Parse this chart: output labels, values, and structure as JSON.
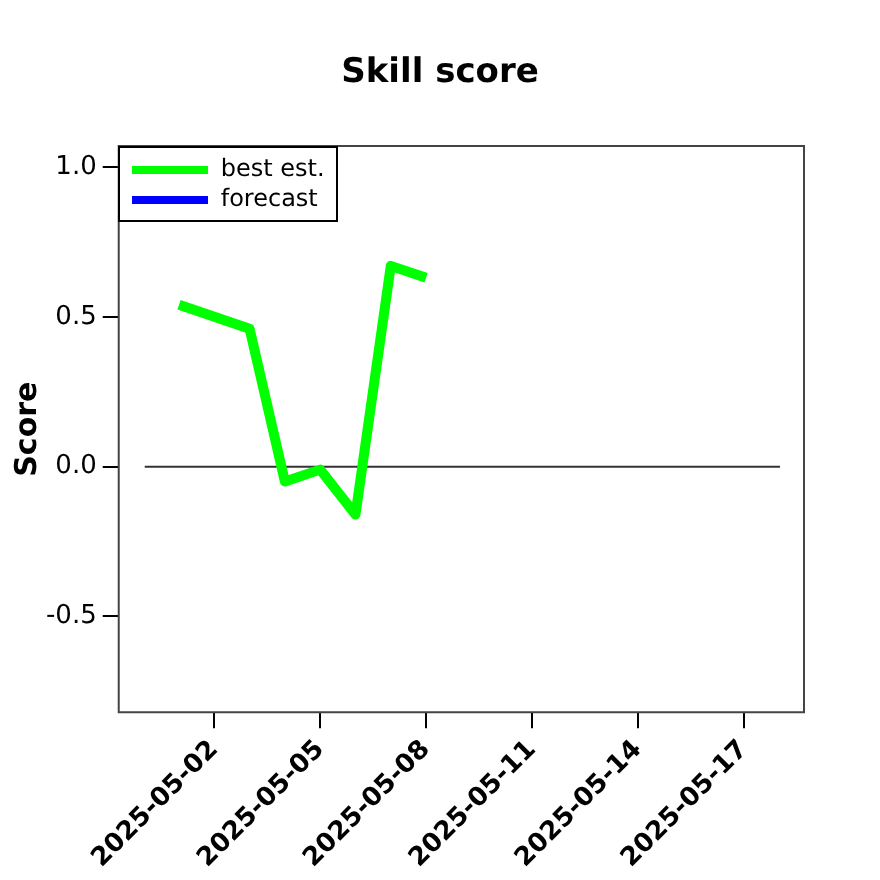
{
  "chart_data": {
    "type": "line",
    "title": "Skill score",
    "ylabel": "Score",
    "x": [
      "2025-05-01",
      "2025-05-03",
      "2025-05-04",
      "2025-05-05",
      "2025-05-06",
      "2025-05-07",
      "2025-05-08"
    ],
    "series": [
      {
        "name": "best est.",
        "color": "#00ff00",
        "values": [
          0.54,
          0.46,
          -0.05,
          -0.01,
          -0.16,
          0.67,
          0.63
        ]
      },
      {
        "name": "forecast",
        "color": "#0000ff",
        "values": [
          null,
          null,
          null,
          null,
          null,
          null,
          null
        ]
      }
    ],
    "xlim": [
      "2025-04-29T07:00",
      "2025-05-18T17:00"
    ],
    "xticks": [
      "2025-05-02",
      "2025-05-05",
      "2025-05-08",
      "2025-05-11",
      "2025-05-14",
      "2025-05-17"
    ],
    "ylim": [
      -0.82,
      1.07
    ],
    "yticks": [
      {
        "value": -0.5,
        "label": "-0.5"
      },
      {
        "value": 0,
        "label": "0.0"
      },
      {
        "value": 0.5,
        "label": "0.5"
      },
      {
        "value": 1,
        "label": "1.0"
      }
    ],
    "ref_lines": [
      {
        "axis": "y",
        "value": 0,
        "color": "#333333"
      }
    ],
    "grid": false,
    "legend": "top left",
    "marker": "none",
    "line_style": "solid"
  }
}
